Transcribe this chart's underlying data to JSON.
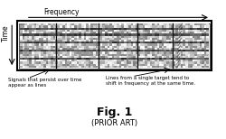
{
  "fig_title": "Fig. 1",
  "fig_subtitle": "(PRIOR ART)",
  "freq_label": "Frequency",
  "time_label": "Time",
  "annotation1": "Signals that persist over time\nappear as lines",
  "annotation2": "Lines from a single target tend to\nshift in frequency at the same time.",
  "bg_color": "#ffffff",
  "noise_seed": 42
}
